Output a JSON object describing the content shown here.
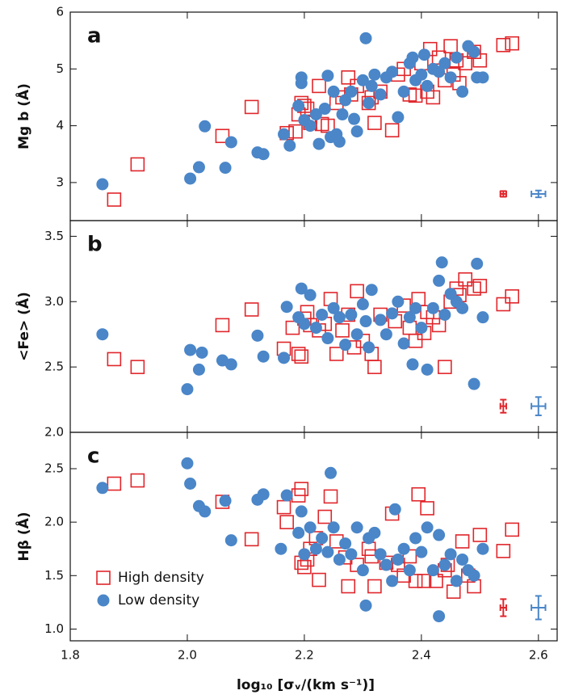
{
  "chart_data": [
    {
      "type": "scatter",
      "panel_label": "a",
      "ylabel": "Mg b (Å)",
      "xlim": [
        1.8,
        2.632
      ],
      "xticks": [
        1.8,
        2.0,
        2.2,
        2.4,
        2.6
      ],
      "ylim": [
        2.33,
        6
      ],
      "yticks": [
        3,
        4,
        5,
        6
      ],
      "series": [
        {
          "name": "High density",
          "color": "#e0262b",
          "marker": "square",
          "x": [
            1.875,
            1.915,
            2.06,
            2.11,
            2.17,
            2.185,
            2.19,
            2.195,
            2.2,
            2.205,
            2.21,
            2.225,
            2.23,
            2.24,
            2.255,
            2.265,
            2.275,
            2.28,
            2.29,
            2.31,
            2.315,
            2.32,
            2.33,
            2.35,
            2.36,
            2.37,
            2.38,
            2.39,
            2.4,
            2.41,
            2.415,
            2.42,
            2.43,
            2.44,
            2.45,
            2.455,
            2.46,
            2.465,
            2.475,
            2.49,
            2.5,
            2.54,
            2.555
          ],
          "values": [
            2.7,
            3.32,
            3.82,
            4.33,
            3.87,
            3.9,
            4.2,
            4.4,
            4.35,
            4.3,
            4.05,
            4.7,
            4.03,
            4.0,
            4.4,
            4.5,
            4.85,
            4.55,
            4.7,
            4.4,
            4.5,
            4.05,
            4.6,
            3.92,
            4.9,
            5.0,
            4.55,
            4.53,
            5.1,
            4.6,
            5.35,
            4.5,
            5.2,
            4.8,
            5.4,
            4.9,
            5.15,
            4.75,
            5.1,
            5.3,
            5.15,
            5.42,
            5.45
          ],
          "error": {
            "x": 2.54,
            "y": 2.8,
            "xerr": 0.005,
            "yerr": 0.05
          }
        },
        {
          "name": "Low density",
          "color": "#4a86c8",
          "marker": "circle",
          "x": [
            1.855,
            2.005,
            2.02,
            2.03,
            2.065,
            2.075,
            2.12,
            2.13,
            2.165,
            2.175,
            2.19,
            2.195,
            2.195,
            2.2,
            2.21,
            2.22,
            2.225,
            2.235,
            2.24,
            2.245,
            2.25,
            2.255,
            2.26,
            2.265,
            2.27,
            2.28,
            2.285,
            2.29,
            2.3,
            2.305,
            2.31,
            2.315,
            2.32,
            2.33,
            2.34,
            2.35,
            2.36,
            2.37,
            2.38,
            2.385,
            2.39,
            2.4,
            2.405,
            2.41,
            2.42,
            2.43,
            2.44,
            2.45,
            2.46,
            2.47,
            2.48,
            2.49,
            2.495,
            2.505
          ],
          "values": [
            2.97,
            3.07,
            3.27,
            3.99,
            3.26,
            3.71,
            3.53,
            3.5,
            3.85,
            3.65,
            4.35,
            4.75,
            4.85,
            4.1,
            4.0,
            4.2,
            3.68,
            4.3,
            4.88,
            3.8,
            4.6,
            3.85,
            3.72,
            4.2,
            4.45,
            4.6,
            4.12,
            3.9,
            4.8,
            5.54,
            4.4,
            4.7,
            4.9,
            4.55,
            4.85,
            4.95,
            4.15,
            4.6,
            5.1,
            5.2,
            4.8,
            4.9,
            5.25,
            4.7,
            5.0,
            4.95,
            5.1,
            4.85,
            5.2,
            4.6,
            5.4,
            5.3,
            4.85,
            4.85
          ],
          "error": {
            "x": 2.6,
            "y": 2.8,
            "xerr": 0.012,
            "yerr": 0.06
          }
        }
      ]
    },
    {
      "type": "scatter",
      "panel_label": "b",
      "ylabel": "<Fe> (Å)",
      "xlim": [
        1.8,
        2.632
      ],
      "xticks": [
        1.8,
        2.0,
        2.2,
        2.4,
        2.6
      ],
      "ylim": [
        2.0,
        3.62
      ],
      "yticks": [
        {
          "value": 2.0,
          "label": "2.0"
        },
        2.5,
        {
          "value": 3.0,
          "label": "3.0"
        },
        3.5
      ],
      "series": [
        {
          "name": "High density",
          "color": "#e0262b",
          "marker": "square",
          "x": [
            1.875,
            1.915,
            2.06,
            2.11,
            2.165,
            2.18,
            2.19,
            2.195,
            2.2,
            2.205,
            2.21,
            2.225,
            2.235,
            2.245,
            2.255,
            2.265,
            2.275,
            2.285,
            2.29,
            2.3,
            2.315,
            2.32,
            2.33,
            2.355,
            2.37,
            2.38,
            2.39,
            2.395,
            2.405,
            2.41,
            2.42,
            2.43,
            2.44,
            2.45,
            2.46,
            2.465,
            2.475,
            2.49,
            2.5,
            2.54,
            2.555
          ],
          "values": [
            2.56,
            2.5,
            2.82,
            2.94,
            2.64,
            2.8,
            2.6,
            2.58,
            2.87,
            2.92,
            2.82,
            2.78,
            2.83,
            3.02,
            2.6,
            2.78,
            2.9,
            2.65,
            3.08,
            2.7,
            2.6,
            2.5,
            2.9,
            2.85,
            2.97,
            2.8,
            2.7,
            3.02,
            2.76,
            2.92,
            2.88,
            2.82,
            2.5,
            3.0,
            3.1,
            3.05,
            3.17,
            3.1,
            3.12,
            2.98,
            3.04
          ],
          "error": {
            "x": 2.54,
            "y": 2.2,
            "xerr": 0.005,
            "yerr": 0.05
          }
        },
        {
          "name": "Low density",
          "color": "#4a86c8",
          "marker": "circle",
          "x": [
            1.855,
            2.0,
            2.005,
            2.02,
            2.025,
            2.06,
            2.075,
            2.12,
            2.13,
            2.165,
            2.17,
            2.19,
            2.195,
            2.2,
            2.21,
            2.22,
            2.23,
            2.24,
            2.25,
            2.26,
            2.27,
            2.28,
            2.29,
            2.3,
            2.305,
            2.31,
            2.315,
            2.33,
            2.34,
            2.35,
            2.36,
            2.37,
            2.38,
            2.385,
            2.39,
            2.4,
            2.41,
            2.42,
            2.43,
            2.435,
            2.44,
            2.45,
            2.46,
            2.47,
            2.49,
            2.495,
            2.505
          ],
          "values": [
            2.75,
            2.33,
            2.63,
            2.48,
            2.61,
            2.55,
            2.52,
            2.74,
            2.58,
            2.57,
            2.96,
            2.88,
            3.1,
            2.83,
            3.05,
            2.8,
            2.9,
            2.72,
            2.95,
            2.88,
            2.67,
            2.9,
            2.75,
            2.98,
            2.85,
            2.65,
            3.09,
            2.86,
            2.75,
            2.91,
            3.0,
            2.68,
            2.88,
            2.52,
            2.95,
            2.8,
            2.48,
            2.95,
            3.16,
            3.3,
            2.9,
            3.06,
            3.0,
            2.95,
            2.37,
            3.29,
            2.88
          ],
          "error": {
            "x": 2.6,
            "y": 2.2,
            "xerr": 0.012,
            "yerr": 0.07
          }
        }
      ]
    },
    {
      "type": "scatter",
      "panel_label": "c",
      "ylabel": "Hβ (Å)",
      "xlabel": "log₁₀ [σᵥ/(km s⁻¹)]",
      "legend": "lower left",
      "xlim": [
        1.8,
        2.632
      ],
      "xticks": [
        {
          "value": 1.8,
          "label": "1.8"
        },
        {
          "value": 2.0,
          "label": "2.0"
        },
        {
          "value": 2.2,
          "label": "2.2"
        },
        {
          "value": 2.4,
          "label": "2.4"
        },
        {
          "value": 2.6,
          "label": "2.6"
        }
      ],
      "ylim": [
        0.89,
        2.84
      ],
      "yticks": [
        {
          "value": 1.0,
          "label": "1.0"
        },
        1.5,
        {
          "value": 2.0,
          "label": "2.0"
        },
        2.5
      ],
      "series": [
        {
          "name": "High density",
          "color": "#e0262b",
          "marker": "square",
          "x": [
            1.875,
            1.915,
            2.06,
            2.11,
            2.165,
            2.17,
            2.19,
            2.195,
            2.195,
            2.2,
            2.205,
            2.21,
            2.22,
            2.225,
            2.235,
            2.245,
            2.255,
            2.27,
            2.275,
            2.29,
            2.31,
            2.315,
            2.32,
            2.34,
            2.35,
            2.36,
            2.37,
            2.38,
            2.39,
            2.395,
            2.405,
            2.41,
            2.425,
            2.44,
            2.445,
            2.455,
            2.47,
            2.48,
            2.49,
            2.5,
            2.54,
            2.555
          ],
          "values": [
            2.36,
            2.39,
            2.19,
            1.84,
            2.14,
            2.0,
            2.25,
            2.31,
            1.62,
            1.58,
            1.65,
            1.75,
            1.85,
            1.46,
            2.05,
            2.24,
            1.82,
            1.67,
            1.4,
            1.6,
            1.75,
            1.68,
            1.4,
            1.62,
            2.08,
            1.6,
            1.5,
            1.68,
            1.45,
            2.26,
            1.45,
            2.13,
            1.45,
            1.55,
            1.6,
            1.35,
            1.82,
            1.5,
            1.4,
            1.88,
            1.73,
            1.93
          ],
          "error": {
            "x": 2.54,
            "y": 1.2,
            "xerr": 0.005,
            "yerr": 0.08
          }
        },
        {
          "name": "Low density",
          "color": "#4a86c8",
          "marker": "circle",
          "x": [
            1.855,
            2.0,
            2.005,
            2.02,
            2.03,
            2.065,
            2.075,
            2.12,
            2.13,
            2.16,
            2.17,
            2.19,
            2.195,
            2.2,
            2.21,
            2.22,
            2.23,
            2.24,
            2.245,
            2.25,
            2.26,
            2.27,
            2.28,
            2.29,
            2.3,
            2.305,
            2.31,
            2.32,
            2.33,
            2.34,
            2.35,
            2.355,
            2.36,
            2.37,
            2.38,
            2.39,
            2.4,
            2.41,
            2.42,
            2.43,
            2.43,
            2.44,
            2.45,
            2.46,
            2.47,
            2.48,
            2.49,
            2.505
          ],
          "values": [
            2.32,
            2.55,
            2.36,
            2.15,
            2.1,
            2.2,
            1.83,
            2.21,
            2.26,
            1.75,
            2.25,
            1.9,
            2.1,
            1.7,
            1.95,
            1.75,
            1.85,
            1.72,
            2.46,
            1.95,
            1.65,
            1.8,
            1.7,
            1.95,
            1.55,
            1.22,
            1.85,
            1.9,
            1.7,
            1.6,
            1.45,
            2.12,
            1.65,
            1.75,
            1.55,
            1.85,
            1.72,
            1.95,
            1.55,
            1.88,
            1.12,
            1.6,
            1.7,
            1.45,
            1.65,
            1.55,
            1.5,
            1.75
          ],
          "error": {
            "x": 2.6,
            "y": 1.2,
            "xerr": 0.012,
            "yerr": 0.11
          }
        }
      ]
    }
  ]
}
